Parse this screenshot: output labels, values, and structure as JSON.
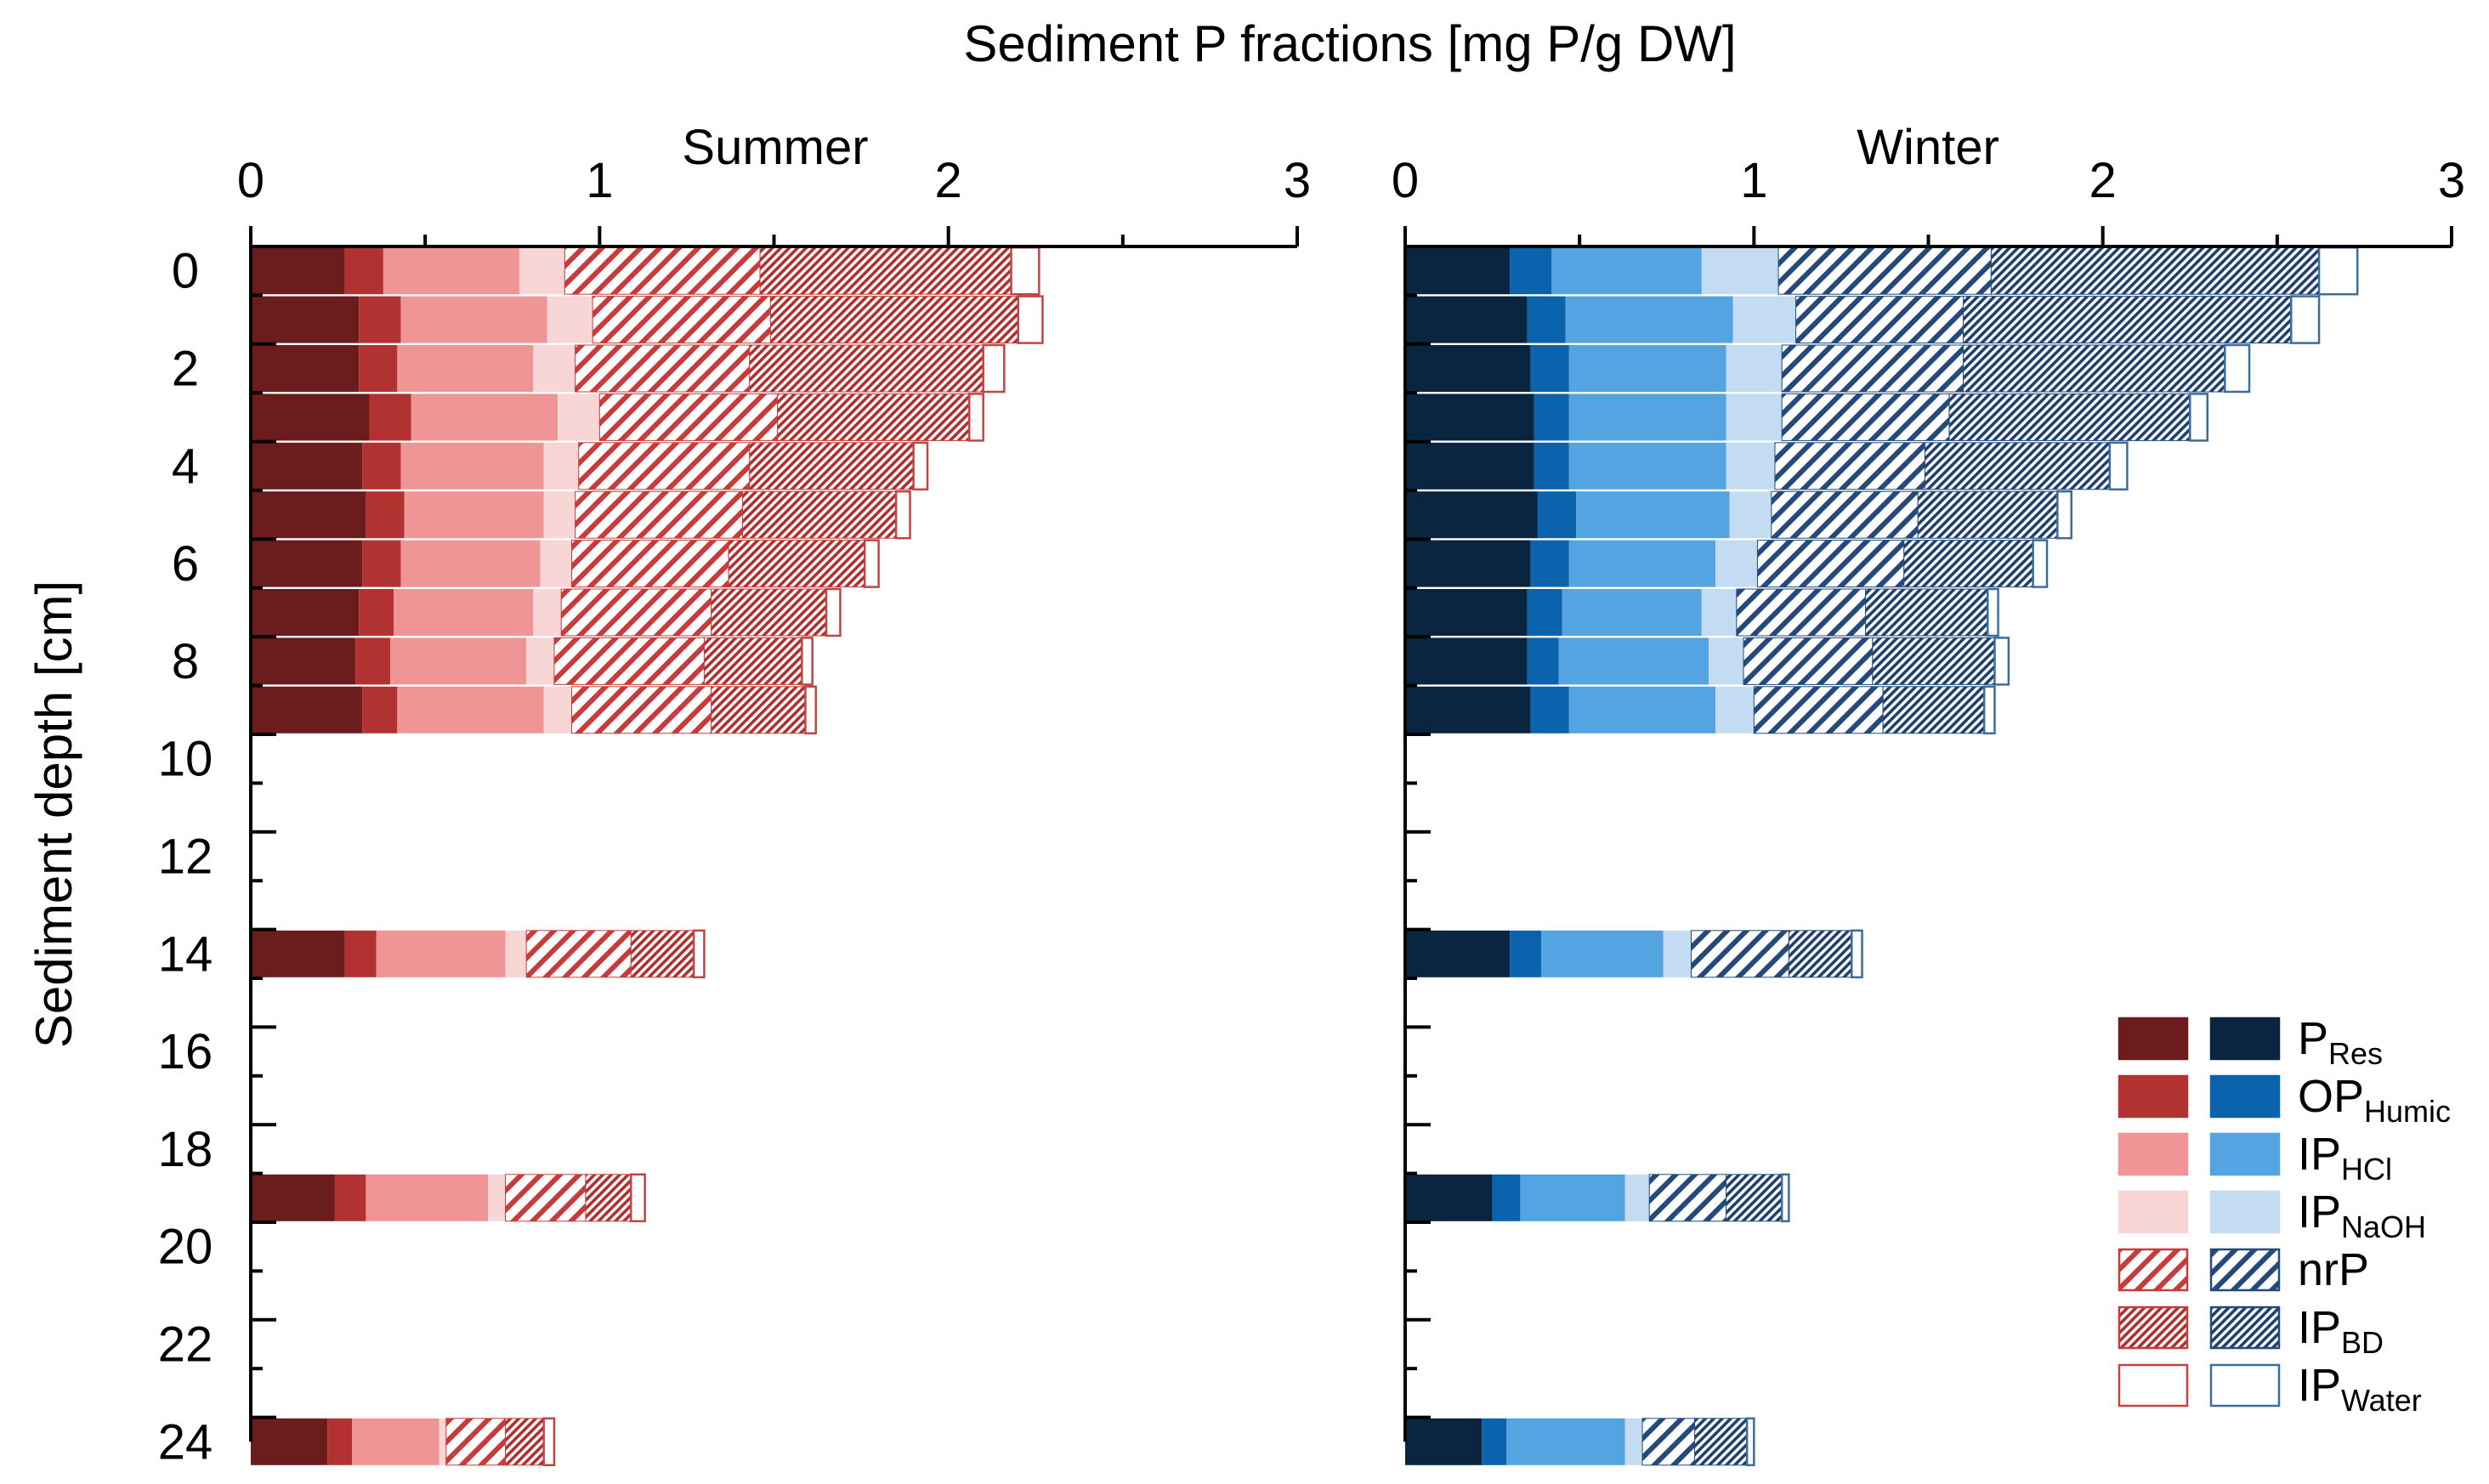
{
  "title": "Sediment P fractions [mg P/g DW]",
  "ylabel": "Sediment depth [cm]",
  "colors": {
    "summer": [
      "#6b1d1d",
      "#b23232",
      "#ef9595",
      "#f8d6d6",
      "#c83b3b",
      "#b03030",
      "#c44444"
    ],
    "winter": [
      "#0a2540",
      "#0b63ad",
      "#53a4e0",
      "#c3dcf2",
      "#234a7a",
      "#1f3f6e",
      "#3a6d9a"
    ]
  },
  "chart_data": {
    "type": "bar",
    "orientation": "horizontal-stacked",
    "x_range": [
      0,
      3
    ],
    "x_ticks": [
      "0",
      "1",
      "2",
      "3"
    ],
    "y_range": [
      0,
      24.5
    ],
    "y_ticks": [
      "0",
      "2",
      "4",
      "6",
      "8",
      "10",
      "12",
      "14",
      "16",
      "18",
      "20",
      "22",
      "24"
    ],
    "fractions": [
      "PRes",
      "OPHumic",
      "IPHCl",
      "IPNaOH",
      "nrP",
      "IPBD",
      "IPWater"
    ],
    "legend": [
      {
        "base": "P",
        "sub": "Res"
      },
      {
        "base": "OP",
        "sub": "Humic"
      },
      {
        "base": "IP",
        "sub": "HCl"
      },
      {
        "base": "IP",
        "sub": "NaOH"
      },
      {
        "base": "nrP",
        "sub": ""
      },
      {
        "base": "IP",
        "sub": "BD"
      },
      {
        "base": "IP",
        "sub": "Water"
      }
    ],
    "panels": [
      {
        "title": "Summer",
        "depths": [
          0,
          1,
          2,
          3,
          4,
          5,
          6,
          7,
          8,
          9,
          14,
          19,
          24
        ],
        "series": [
          {
            "name": "PRes",
            "values": [
              0.27,
              0.31,
              0.31,
              0.34,
              0.32,
              0.33,
              0.32,
              0.31,
              0.3,
              0.32,
              0.27,
              0.24,
              0.22
            ]
          },
          {
            "name": "OPHumic",
            "values": [
              0.11,
              0.12,
              0.11,
              0.12,
              0.11,
              0.11,
              0.11,
              0.1,
              0.1,
              0.1,
              0.09,
              0.09,
              0.07
            ]
          },
          {
            "name": "IPHCl",
            "values": [
              0.39,
              0.42,
              0.39,
              0.42,
              0.41,
              0.4,
              0.4,
              0.4,
              0.39,
              0.42,
              0.37,
              0.35,
              0.25
            ]
          },
          {
            "name": "IPNaOH",
            "values": [
              0.13,
              0.13,
              0.12,
              0.12,
              0.1,
              0.09,
              0.09,
              0.08,
              0.08,
              0.08,
              0.06,
              0.05,
              0.02
            ]
          },
          {
            "name": "nrP",
            "values": [
              0.56,
              0.51,
              0.5,
              0.51,
              0.49,
              0.48,
              0.45,
              0.43,
              0.43,
              0.4,
              0.3,
              0.23,
              0.17
            ]
          },
          {
            "name": "IPBD",
            "values": [
              0.72,
              0.71,
              0.67,
              0.55,
              0.47,
              0.44,
              0.39,
              0.33,
              0.28,
              0.27,
              0.18,
              0.13,
              0.11
            ]
          },
          {
            "name": "IPWater",
            "values": [
              0.08,
              0.07,
              0.06,
              0.04,
              0.04,
              0.04,
              0.04,
              0.04,
              0.03,
              0.03,
              0.03,
              0.04,
              0.03
            ]
          }
        ]
      },
      {
        "title": "Winter",
        "depths": [
          0,
          1,
          2,
          3,
          4,
          5,
          6,
          7,
          8,
          9,
          14,
          19,
          24
        ],
        "series": [
          {
            "name": "PRes",
            "values": [
              0.3,
              0.35,
              0.36,
              0.37,
              0.37,
              0.38,
              0.36,
              0.35,
              0.35,
              0.36,
              0.3,
              0.25,
              0.22
            ]
          },
          {
            "name": "OPHumic",
            "values": [
              0.12,
              0.11,
              0.11,
              0.1,
              0.1,
              0.11,
              0.11,
              0.1,
              0.09,
              0.11,
              0.09,
              0.08,
              0.07
            ]
          },
          {
            "name": "IPHCl",
            "values": [
              0.43,
              0.48,
              0.45,
              0.45,
              0.45,
              0.44,
              0.42,
              0.4,
              0.43,
              0.42,
              0.35,
              0.3,
              0.34
            ]
          },
          {
            "name": "IPNaOH",
            "values": [
              0.22,
              0.18,
              0.16,
              0.16,
              0.14,
              0.12,
              0.12,
              0.1,
              0.1,
              0.11,
              0.08,
              0.07,
              0.05
            ]
          },
          {
            "name": "nrP",
            "values": [
              0.61,
              0.48,
              0.52,
              0.48,
              0.43,
              0.42,
              0.42,
              0.37,
              0.37,
              0.37,
              0.28,
              0.22,
              0.15
            ]
          },
          {
            "name": "IPBD",
            "values": [
              0.94,
              0.94,
              0.75,
              0.69,
              0.53,
              0.4,
              0.37,
              0.35,
              0.35,
              0.29,
              0.18,
              0.16,
              0.15
            ]
          },
          {
            "name": "IPWater",
            "values": [
              0.11,
              0.08,
              0.07,
              0.05,
              0.05,
              0.04,
              0.04,
              0.03,
              0.04,
              0.03,
              0.03,
              0.02,
              0.02
            ]
          }
        ]
      }
    ]
  }
}
